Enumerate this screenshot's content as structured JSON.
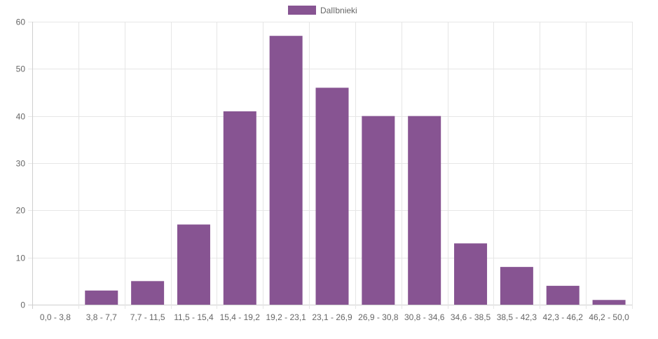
{
  "chart_data": {
    "type": "bar",
    "categories": [
      "0,0 - 3,8",
      "3,8 - 7,7",
      "7,7 - 11,5",
      "11,5 - 15,4",
      "15,4 - 19,2",
      "19,2 - 23,1",
      "23,1 - 26,9",
      "26,9 - 30,8",
      "30,8 - 34,6",
      "34,6 - 38,5",
      "38,5 - 42,3",
      "42,3 - 46,2",
      "46,2 - 50,0"
    ],
    "series": [
      {
        "name": "Dalībnieki",
        "values": [
          0,
          3,
          5,
          17,
          41,
          57,
          46,
          40,
          40,
          13,
          8,
          4,
          1
        ]
      }
    ],
    "ylim": [
      0,
      60
    ],
    "yticks": [
      0,
      10,
      20,
      30,
      40,
      50,
      60
    ],
    "grid": true,
    "legend_position": "top-center",
    "colors": {
      "bar": "#875492",
      "grid": "#e6e6e6",
      "axis": "#cfcfcf",
      "tick_text": "#666666"
    }
  }
}
